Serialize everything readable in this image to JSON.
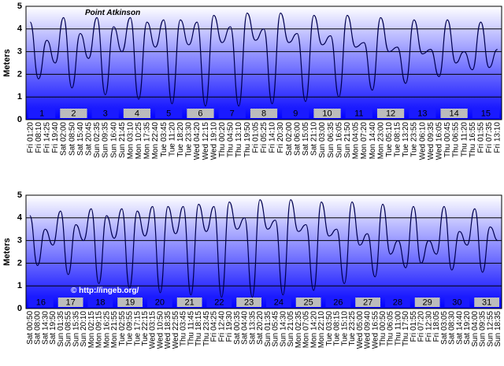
{
  "chart_data": [
    {
      "type": "line",
      "title": "Point Atkinson",
      "ylabel": "Meters",
      "ylim": [
        0,
        5
      ],
      "yticks": [
        0,
        1,
        2,
        3,
        4,
        5
      ],
      "grid": true,
      "color": "#000050",
      "categories": [
        "Fri 01:20",
        "Fri 08:10",
        "Fri 14:25",
        "Fri 19:40",
        "Sat 02:00",
        "Sat 08:50",
        "Sat 15:40",
        "Sat 20:45",
        "Sun 02:35",
        "Sun 09:35",
        "Sun 16:40",
        "Sun 21:45",
        "Mon 03:10",
        "Mon 10:25",
        "Mon 17:35",
        "Mon 22:40",
        "Tue 03:45",
        "Tue 11:20",
        "Tue 18:20",
        "Tue 23:30",
        "Wed 04:20",
        "Wed 12:15",
        "Wed 19:10",
        "Thu 00:20",
        "Thu 04:50",
        "Thu 13:10",
        "Thu 19:50",
        "Fri 01:05",
        "Fri 05:25",
        "Fri 14:10",
        "Fri 20:30",
        "Sat 02:00",
        "Sat 06:00",
        "Sat 15:05",
        "Sat 21:10",
        "Sun 03:00",
        "Sun 06:35",
        "Sun 16:05",
        "Sun 21:50",
        "Mon 04:05",
        "Mon 07:20",
        "Mon 14:40",
        "Mon 23:00",
        "Tue 05:10",
        "Tue 08:15",
        "Tue 13:20",
        "Tue 23:55",
        "Wed 06:10",
        "Wed 09:35",
        "Wed 16:05",
        "Thu 00:45",
        "Thu 06:55",
        "Thu 11:20",
        "Thu 16:55",
        "Fri 01:55",
        "Fri 07:35",
        "Fri 13:10"
      ],
      "values": [
        4.3,
        1.8,
        3.5,
        2.5,
        4.5,
        1.4,
        3.8,
        2.7,
        4.5,
        1.1,
        4.1,
        3.0,
        4.5,
        0.9,
        4.3,
        3.2,
        4.4,
        0.7,
        4.4,
        3.3,
        4.3,
        0.6,
        4.6,
        3.4,
        4.1,
        0.6,
        4.7,
        3.5,
        4.0,
        0.7,
        4.7,
        3.4,
        3.8,
        0.8,
        4.6,
        3.3,
        3.7,
        1.0,
        4.6,
        3.2,
        3.4,
        1.3,
        4.5,
        3.0,
        3.2,
        1.6,
        4.4,
        2.9,
        3.1,
        1.9,
        4.4,
        2.5,
        3.0,
        2.2,
        4.3,
        2.3,
        3.1
      ],
      "day_labels": [
        1,
        2,
        3,
        4,
        5,
        6,
        7,
        8,
        9,
        10,
        11,
        12,
        13,
        14,
        15
      ]
    },
    {
      "type": "line",
      "ylabel": "Meters",
      "annotation": "© http://ingeb.org/",
      "ylim": [
        0,
        5
      ],
      "yticks": [
        0,
        1,
        2,
        3,
        4,
        5
      ],
      "grid": true,
      "color": "#000050",
      "categories": [
        "Sat 00:50",
        "Sat 08:00",
        "Sat 14:30",
        "Sat 19:50",
        "Sun 01:35",
        "Sun 08:55",
        "Sun 15:35",
        "Sun 20:10",
        "Mon 02:15",
        "Mon 09:15",
        "Mon 16:25",
        "Mon 21:55",
        "Tue 02:55",
        "Tue 09:55",
        "Tue 17:15",
        "Tue 22:15",
        "Wed 03:15",
        "Wed 10:50",
        "Wed 18:35",
        "Wed 22:55",
        "Thu 03:45",
        "Thu 11:45",
        "Thu 18:15",
        "Thu 23:45",
        "Fri 04:25",
        "Fri 12:40",
        "Fri 19:30",
        "Sat 00:35",
        "Sat 04:40",
        "Sat 13:35",
        "Sat 20:20",
        "Sun 01:35",
        "Sun 05:45",
        "Sun 14:30",
        "Sun 21:05",
        "Mon 02:35",
        "Mon 07:05",
        "Mon 14:20",
        "Mon 22:10",
        "Tue 03:50",
        "Tue 08:15",
        "Tue 15:10",
        "Tue 23:25",
        "Wed 05:00",
        "Wed 09:40",
        "Wed 16:55",
        "Thu 00:50",
        "Thu 06:05",
        "Thu 11:00",
        "Thu 17:50",
        "Fri 01:55",
        "Fri 07:20",
        "Fri 12:30",
        "Fri 18:05",
        "Sat 03:05",
        "Sat 08:30",
        "Sat 14:40",
        "Sat 19:20",
        "Sun 04:00",
        "Sun 09:35",
        "Sun 12:55",
        "Sun 18:35"
      ],
      "values": [
        4.1,
        1.9,
        3.5,
        2.8,
        4.3,
        1.5,
        3.7,
        3.0,
        4.4,
        1.1,
        4.1,
        3.1,
        4.4,
        0.9,
        4.3,
        3.2,
        4.5,
        0.7,
        4.5,
        3.3,
        4.5,
        0.6,
        4.6,
        3.4,
        4.5,
        0.5,
        4.7,
        3.5,
        4.0,
        0.5,
        4.8,
        3.5,
        3.9,
        0.6,
        4.8,
        3.4,
        3.7,
        0.8,
        4.7,
        3.2,
        3.5,
        1.1,
        4.7,
        2.8,
        3.3,
        1.4,
        4.6,
        2.4,
        3.0,
        1.8,
        4.5,
        2.0,
        3.0,
        2.4,
        4.5,
        1.7,
        3.4,
        2.8,
        4.4,
        1.6,
        3.6,
        3.0
      ],
      "day_labels": [
        16,
        17,
        18,
        19,
        20,
        21,
        22,
        23,
        24,
        25,
        26,
        27,
        28,
        29,
        30,
        31
      ]
    }
  ]
}
